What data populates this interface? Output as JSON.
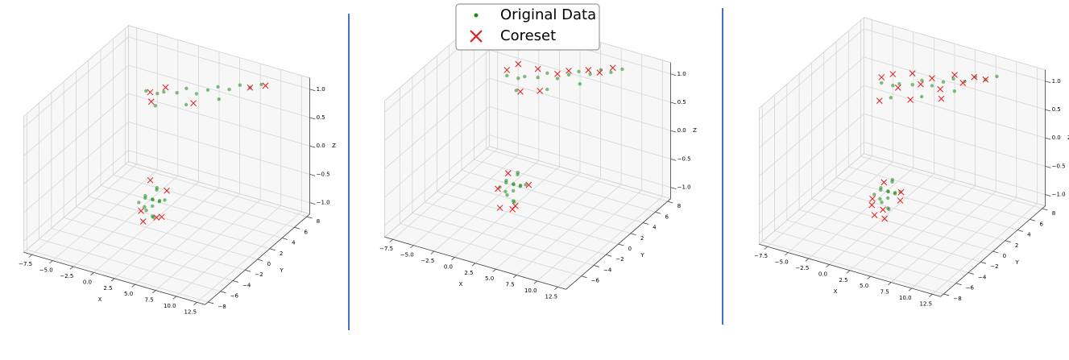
{
  "chart_data": [
    {
      "type": "scatter3d",
      "xlabel": "X",
      "ylabel": "Y",
      "zlabel": "Z",
      "xlim": [
        -8.5,
        13.5
      ],
      "ylim": [
        -8.5,
        8.5
      ],
      "zlim": [
        -1.2,
        1.2
      ],
      "xticks": [
        {
          "value": -7.5,
          "label": "−7.5"
        },
        {
          "value": -5,
          "label": "−5.0"
        },
        {
          "value": -2.5,
          "label": "−2.5"
        },
        {
          "value": 0,
          "label": "0.0"
        },
        2.5,
        {
          "value": 5,
          "label": "5.0"
        },
        7.5,
        {
          "value": 10,
          "label": "10.0"
        },
        12.5
      ],
      "yticks": [
        {
          "value": -8,
          "label": "−8"
        },
        {
          "value": -6,
          "label": "−6"
        },
        {
          "value": -4,
          "label": "−4"
        },
        {
          "value": -2,
          "label": "−2"
        },
        0,
        2,
        4,
        6,
        8
      ],
      "zticks": [
        {
          "value": -1,
          "label": "−1.0"
        },
        {
          "value": -0.5,
          "label": "−0.5"
        },
        {
          "value": 0,
          "label": "0.0"
        },
        {
          "value": 0.5,
          "label": "0.5"
        },
        {
          "value": 1,
          "label": "1.0"
        }
      ],
      "grid": true,
      "series": [
        {
          "color": "#1a8a1a",
          "marker": "dot",
          "x": [
            -3,
            -2,
            -1,
            0,
            1,
            2,
            3,
            4,
            5,
            6,
            7,
            8,
            -1.5,
            1.5,
            4.5,
            3,
            2.5,
            3.5,
            2,
            4,
            3,
            2.8,
            3.6,
            2.2,
            3.3,
            4.2,
            1.8,
            3,
            3.5,
            2.6
          ],
          "y": [
            4,
            4.5,
            4.2,
            5,
            5.2,
            5.5,
            6,
            6.3,
            6.8,
            7.2,
            7.5,
            8,
            3.5,
            4.5,
            5.8,
            -3,
            -3.5,
            -2.5,
            -2.8,
            -3.2,
            -4,
            -2,
            -3.8,
            -3.2,
            -2.7,
            -2.6,
            -3.6,
            -3,
            -3.5,
            -2.4
          ],
          "z": [
            0.7,
            0.65,
            0.75,
            0.7,
            0.8,
            0.72,
            0.78,
            0.85,
            0.8,
            0.88,
            0.85,
            0.9,
            0.55,
            0.6,
            0.7,
            -0.3,
            -0.25,
            -0.35,
            -0.3,
            -0.28,
            -0.4,
            -0.2,
            -0.32,
            -0.45,
            -0.15,
            -0.3,
            -0.35,
            -0.6,
            -0.55,
            -0.38
          ]
        },
        {
          "color": "#e41a1c",
          "marker": "x",
          "x": [
            -2.5,
            -1,
            2,
            7,
            8.5,
            -2,
            2,
            4,
            3,
            4.5,
            2,
            3.5
          ],
          "y": [
            4,
            4.5,
            5,
            7.5,
            8,
            3.5,
            -3.5,
            -2,
            -4.5,
            -3.5,
            -2,
            -3
          ],
          "z": [
            0.7,
            0.8,
            0.6,
            0.85,
            0.9,
            0.6,
            -0.5,
            -0.2,
            -0.55,
            -0.5,
            -0.1,
            -0.6
          ]
        }
      ]
    },
    {
      "type": "scatter3d",
      "xlabel": "X",
      "ylabel": "Y",
      "zlabel": "Z",
      "xlim": [
        -8.5,
        13.5
      ],
      "ylim": [
        -8.5,
        8.5
      ],
      "zlim": [
        -1.2,
        1.2
      ],
      "xticks": [
        {
          "value": -7.5,
          "label": "−7.5"
        },
        {
          "value": -5,
          "label": "−5.0"
        },
        {
          "value": -2.5,
          "label": "−2.5"
        },
        {
          "value": 0,
          "label": "0.0"
        },
        2.5,
        {
          "value": 5,
          "label": "5.0"
        },
        7.5,
        {
          "value": 10,
          "label": "10.0"
        },
        12.5
      ],
      "yticks": [
        {
          "value": -6,
          "label": "−6"
        },
        {
          "value": -4,
          "label": "−4"
        },
        {
          "value": -2,
          "label": "−2"
        },
        0,
        2,
        4,
        6,
        8
      ],
      "zticks": [
        {
          "value": -1,
          "label": "−1.0"
        },
        {
          "value": -0.5,
          "label": "−0.5"
        },
        {
          "value": 0,
          "label": "0.0"
        },
        {
          "value": 0.5,
          "label": "0.5"
        },
        {
          "value": 1,
          "label": "1.0"
        }
      ],
      "grid": true,
      "legend": "upper center",
      "series": [
        {
          "name": "Original Data",
          "color": "#1a8a1a",
          "marker": "dot",
          "x": [
            -3,
            -2,
            -1,
            0,
            1,
            2,
            3,
            4,
            5,
            6,
            7,
            8,
            -1.5,
            1.5,
            4.5,
            3,
            2.5,
            3.5,
            2,
            4,
            3,
            2.8,
            3.6,
            2.2,
            3.3,
            4.2,
            1.8,
            3,
            3.5,
            2.6
          ],
          "y": [
            4,
            4.5,
            4.2,
            5,
            5.2,
            5.5,
            6,
            6.3,
            6.8,
            7.2,
            7.5,
            8,
            3.5,
            4.5,
            5.8,
            -3,
            -3.5,
            -2.5,
            -2.8,
            -3.2,
            -4,
            -2,
            -3.8,
            -3.2,
            -2.7,
            -2.6,
            -3.6,
            -3,
            -3.5,
            -2.4
          ],
          "z": [
            0.7,
            0.65,
            0.75,
            0.7,
            0.8,
            0.72,
            0.78,
            0.85,
            0.8,
            0.88,
            0.85,
            0.9,
            0.55,
            0.6,
            0.7,
            -0.3,
            -0.25,
            -0.35,
            -0.3,
            -0.28,
            -0.4,
            -0.2,
            -0.32,
            -0.45,
            -0.15,
            -0.3,
            -0.35,
            -0.6,
            -0.55,
            -0.38
          ]
        },
        {
          "name": "Coreset",
          "color": "#e41a1c",
          "marker": "x",
          "x": [
            -3,
            -2,
            0,
            1,
            2,
            3,
            5,
            6,
            7,
            -1,
            1.5,
            4.5,
            2.5,
            4,
            2,
            3.5
          ],
          "y": [
            4,
            4.5,
            5,
            4,
            5.5,
            6,
            6.5,
            7,
            7.8,
            3.5,
            -3.5,
            -2.5,
            -4.5,
            -4,
            -2.5,
            -3.8
          ],
          "z": [
            0.8,
            0.9,
            0.85,
            0.6,
            0.8,
            0.85,
            0.9,
            0.85,
            0.9,
            0.55,
            -0.4,
            -0.3,
            -0.6,
            -0.55,
            -0.2,
            -0.65
          ]
        }
      ]
    },
    {
      "type": "scatter3d",
      "xlabel": "X",
      "ylabel": "Y",
      "zlabel": "Z",
      "xlim": [
        -8.5,
        13.5
      ],
      "ylim": [
        -8.5,
        8.5
      ],
      "zlim": [
        -1.2,
        1.2
      ],
      "xticks": [
        {
          "value": -7.5,
          "label": "−7.5"
        },
        {
          "value": -5,
          "label": "−5.0"
        },
        {
          "value": -2.5,
          "label": "−2.5"
        },
        {
          "value": 0,
          "label": "0.0"
        },
        2.5,
        {
          "value": 5,
          "label": "5.0"
        },
        7.5,
        {
          "value": 10,
          "label": "10.0"
        },
        12.5
      ],
      "yticks": [
        {
          "value": -8,
          "label": "−8"
        },
        {
          "value": -6,
          "label": "−6"
        },
        {
          "value": -4,
          "label": "−4"
        },
        {
          "value": -2,
          "label": "−2"
        },
        0,
        2,
        4,
        6,
        8
      ],
      "zticks": [
        {
          "value": -1,
          "label": "−1.0"
        },
        {
          "value": -0.5,
          "label": "−0.5"
        },
        {
          "value": 0,
          "label": "0.0"
        },
        {
          "value": 0.5,
          "label": "0.5"
        },
        {
          "value": 1,
          "label": "1.0"
        }
      ],
      "grid": true,
      "series": [
        {
          "color": "#1a8a1a",
          "marker": "dot",
          "x": [
            -3,
            -2,
            -1,
            0,
            1,
            2,
            3,
            4,
            5,
            6,
            7,
            8,
            -1.5,
            1.5,
            4.5,
            3,
            2.5,
            3.5,
            2,
            4,
            3,
            2.8,
            3.6,
            2.2,
            3.3,
            4.2,
            1.8,
            3,
            3.5,
            2.6
          ],
          "y": [
            4,
            4.5,
            4.2,
            5,
            5.2,
            5.5,
            6,
            6.3,
            6.8,
            7.2,
            7.5,
            8,
            3.5,
            4.5,
            5.8,
            -3,
            -3.5,
            -2.5,
            -2.8,
            -3.2,
            -4,
            -2,
            -3.8,
            -3.2,
            -2.7,
            -2.6,
            -3.6,
            -3,
            -3.5,
            -2.4
          ],
          "z": [
            0.7,
            0.65,
            0.75,
            0.7,
            0.8,
            0.72,
            0.78,
            0.85,
            0.8,
            0.88,
            0.85,
            0.9,
            0.55,
            0.6,
            0.7,
            -0.3,
            -0.25,
            -0.35,
            -0.3,
            -0.28,
            -0.4,
            -0.2,
            -0.32,
            -0.45,
            -0.15,
            -0.3,
            -0.35,
            -0.6,
            -0.55,
            -0.38
          ]
        },
        {
          "color": "#e41a1c",
          "marker": "x",
          "x": [
            -3,
            -2,
            -1,
            0,
            1,
            2,
            3,
            4,
            5,
            6,
            7,
            -2.5,
            0.5,
            3.5,
            1.5,
            4.5,
            2.5,
            3.5,
            2,
            3,
            4,
            1.8
          ],
          "y": [
            4,
            4.5,
            4,
            5,
            5,
            5.5,
            5.5,
            6.5,
            6.5,
            7,
            7.5,
            3,
            4,
            5,
            -3.5,
            -3,
            -4.5,
            -4.2,
            -2.3,
            -3.8,
            -2.2,
            -4
          ],
          "z": [
            0.8,
            0.85,
            0.7,
            0.9,
            0.75,
            0.85,
            0.7,
            0.9,
            0.8,
            0.9,
            0.85,
            0.5,
            0.55,
            0.6,
            -0.45,
            -0.4,
            -0.6,
            -0.65,
            -0.25,
            -0.55,
            -0.35,
            -0.5
          ]
        }
      ]
    }
  ]
}
